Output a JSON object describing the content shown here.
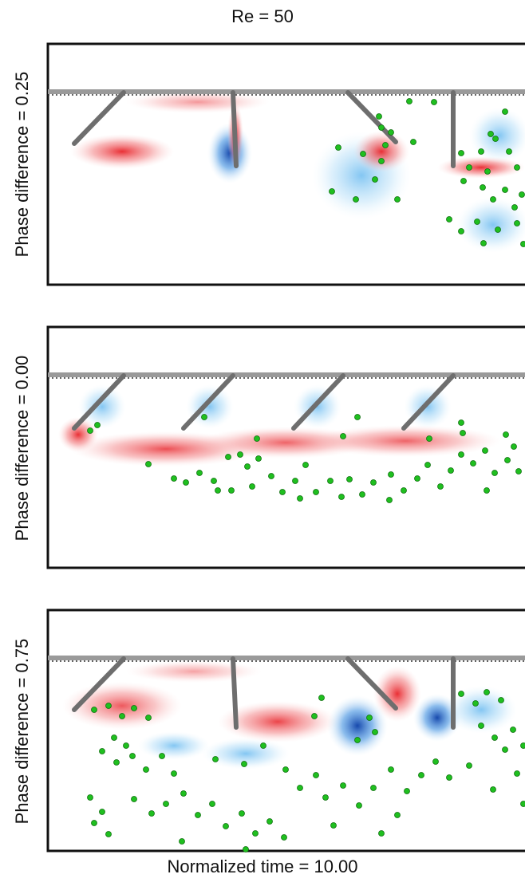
{
  "header": {
    "title": "Re = 50"
  },
  "footer": {
    "time_label": "Normalized time = 10.00"
  },
  "panels": [
    {
      "label": "Phase difference = 0.25"
    },
    {
      "label": "Phase difference = 0.00"
    },
    {
      "label": "Phase difference = 0.75"
    }
  ],
  "colors": {
    "positive_vorticity": "#e8242a",
    "negative_vorticity": "#1560c8",
    "particles": "#1fbf1f",
    "cilia": "#6e6e6e",
    "frame": "#111111"
  }
}
